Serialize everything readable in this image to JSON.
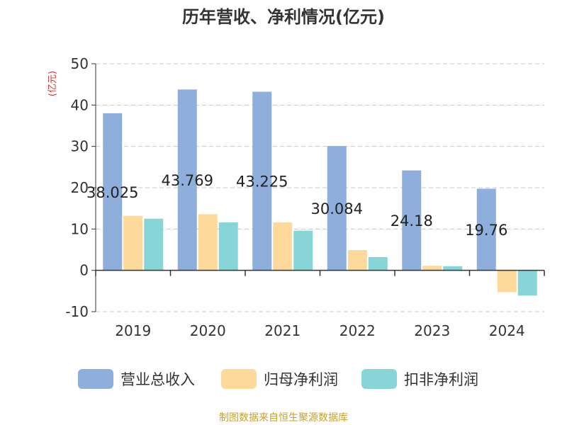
{
  "chart_data": {
    "type": "bar",
    "title": "历年营收、净利情况(亿元)",
    "ylabel": "(亿元)",
    "xlabel": "",
    "categories": [
      "2019",
      "2020",
      "2021",
      "2022",
      "2023",
      "2024"
    ],
    "ylim": [
      -10,
      50
    ],
    "yticks": [
      -10,
      0,
      10,
      20,
      30,
      40,
      50
    ],
    "grid": true,
    "legend_position": "bottom",
    "series": [
      {
        "name": "营业总收入",
        "color": "#8eaedb",
        "values": [
          38.025,
          43.769,
          43.225,
          30.084,
          24.18,
          19.76
        ]
      },
      {
        "name": "归母净利润",
        "color": "#fdd99b",
        "values": [
          13.2,
          13.6,
          11.6,
          4.9,
          1.1,
          -5.3
        ]
      },
      {
        "name": "扣非净利润",
        "color": "#88d5d7",
        "values": [
          12.5,
          11.6,
          9.6,
          3.2,
          1.0,
          -6.1
        ]
      }
    ],
    "data_labels": [
      "38.025",
      "43.769",
      "43.225",
      "30.084",
      "24.18",
      "19.76"
    ]
  },
  "source": "制图数据来自恒生聚源数据库",
  "colors": {
    "ylabel": "#e0312c",
    "source": "#c9a227",
    "axis": "#333333",
    "grid": "#c8c8c8",
    "text": "#333333"
  }
}
